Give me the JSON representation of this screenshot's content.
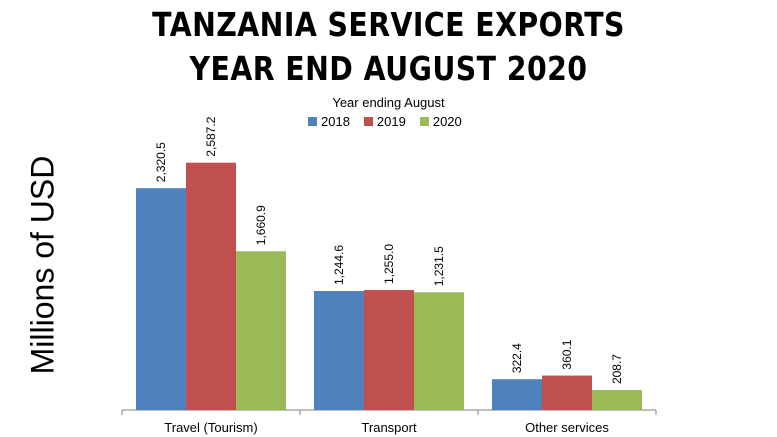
{
  "title_line1": "TANZANIA SERVICE EXPORTS",
  "title_line2": "YEAR END AUGUST 2020",
  "ylabel": "Millions of USD",
  "chart_data": {
    "type": "bar",
    "legend_title": "Year ending  August",
    "legend_position": "top",
    "categories": [
      "Travel (Tourism)",
      "Transport",
      "Other services"
    ],
    "series": [
      {
        "name": "2018",
        "color": "#4F81BD",
        "values": [
          2320.5,
          1244.6,
          322.4
        ],
        "labels": [
          "2,320.5",
          "1,244.6",
          "322.4"
        ]
      },
      {
        "name": "2019",
        "color": "#C0504D",
        "values": [
          2587.2,
          1255.0,
          360.1
        ],
        "labels": [
          "2,587.2",
          "1,255.0",
          "360.1"
        ]
      },
      {
        "name": "2020",
        "color": "#9BBB59",
        "values": [
          1660.9,
          1231.5,
          208.7
        ],
        "labels": [
          "1,660.9",
          "1,231.5",
          "208.7"
        ]
      }
    ],
    "ylim": [
      0,
      2900
    ],
    "grid": false
  }
}
